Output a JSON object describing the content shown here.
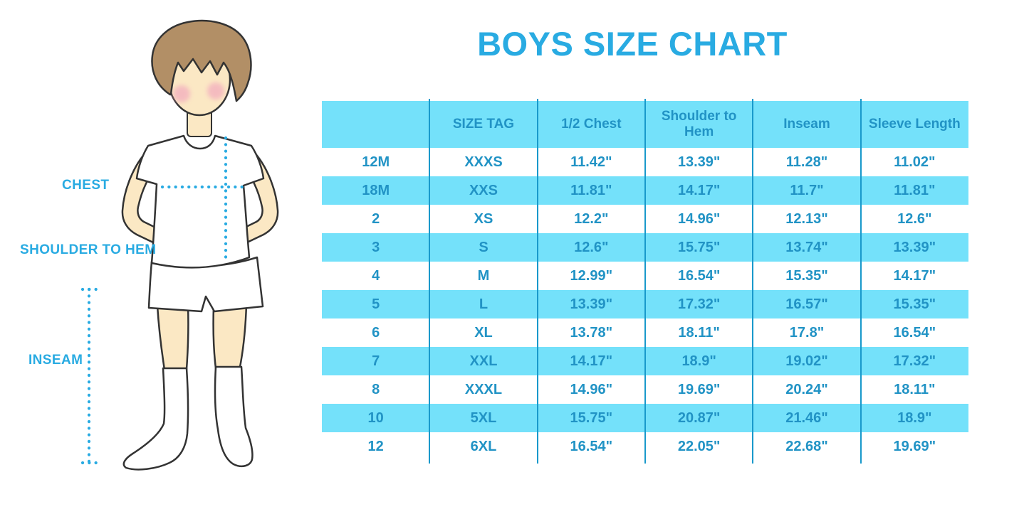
{
  "title": "BOYS SIZE CHART",
  "illustration": {
    "figure": "cartoon boy in white t-shirt, shorts and knee socks with dotted measurement guide lines",
    "labels": {
      "chest": "CHEST",
      "shoulder_to_hem": "SHOULDER TO HEM",
      "inseam": "INSEAM"
    }
  },
  "chart_data": {
    "type": "table",
    "title": "BOYS SIZE CHART",
    "columns": [
      "",
      "SIZE TAG",
      "1/2 Chest",
      "Shoulder to Hem",
      "Inseam",
      "Sleeve Length"
    ],
    "rows": [
      [
        "12M",
        "XXXS",
        "11.42\"",
        "13.39\"",
        "11.28\"",
        "11.02\""
      ],
      [
        "18M",
        "XXS",
        "11.81\"",
        "14.17\"",
        "11.7\"",
        "11.81\""
      ],
      [
        "2",
        "XS",
        "12.2\"",
        "14.96\"",
        "12.13\"",
        "12.6\""
      ],
      [
        "3",
        "S",
        "12.6\"",
        "15.75\"",
        "13.74\"",
        "13.39\""
      ],
      [
        "4",
        "M",
        "12.99\"",
        "16.54\"",
        "15.35\"",
        "14.17\""
      ],
      [
        "5",
        "L",
        "13.39\"",
        "17.32\"",
        "16.57\"",
        "15.35\""
      ],
      [
        "6",
        "XL",
        "13.78\"",
        "18.11\"",
        "17.8\"",
        "16.54\""
      ],
      [
        "7",
        "XXL",
        "14.17\"",
        "18.9\"",
        "19.02\"",
        "17.32\""
      ],
      [
        "8",
        "XXXL",
        "14.96\"",
        "19.69\"",
        "20.24\"",
        "18.11\""
      ],
      [
        "10",
        "5XL",
        "15.75\"",
        "20.87\"",
        "21.46\"",
        "18.9\""
      ],
      [
        "12",
        "6XL",
        "16.54\"",
        "22.05\"",
        "22.68\"",
        "19.69\""
      ]
    ],
    "layout": {
      "striped": true,
      "stripe_pattern": "white/blue alternating, header blue",
      "grid": "vertical dividers only"
    }
  },
  "colors": {
    "accent_blue": "#29ABE2",
    "table_fill": "#74E1FA",
    "table_text": "#2193C5",
    "table_line": "#1999CB",
    "skin": "#FBE8C4",
    "hair": "#B28F66",
    "cheek": "#F2A9BE",
    "outline": "#333333"
  }
}
